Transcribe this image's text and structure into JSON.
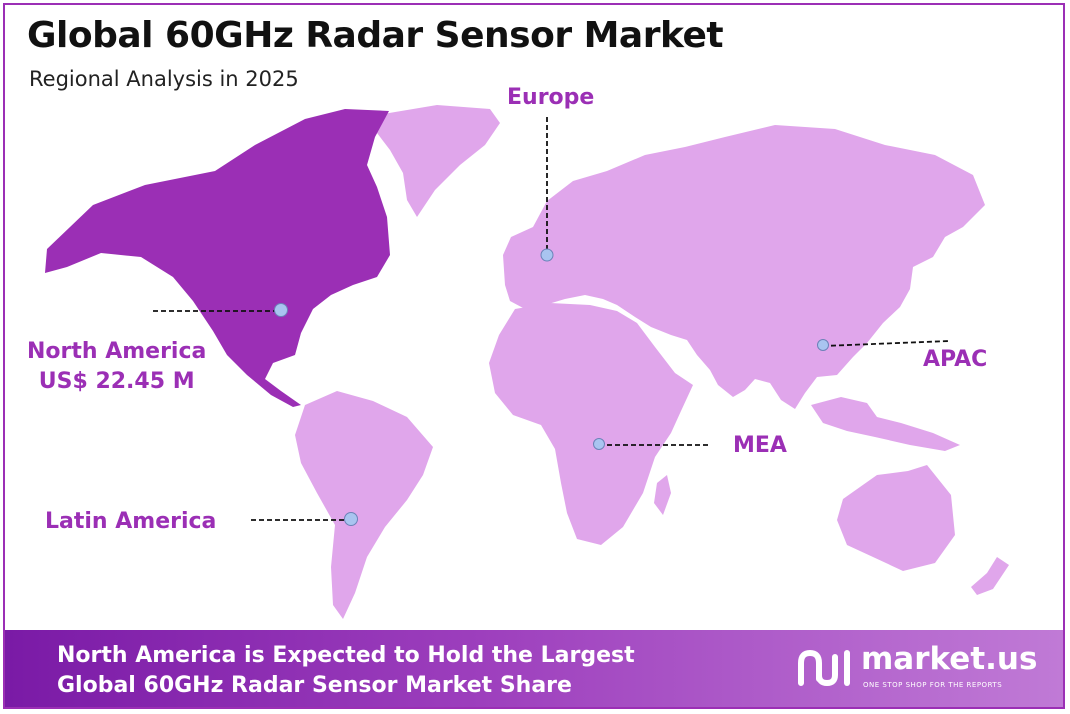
{
  "title": "Global 60GHz Radar Sensor Market",
  "subtitle": "Regional Analysis in 2025",
  "regions": {
    "europe": "Europe",
    "north_america": "North America",
    "north_america_value": "US$ 22.45 M",
    "latin_america": "Latin America",
    "mea": "MEA",
    "apac": "APAC"
  },
  "colors": {
    "highlight": "#9b2fb5",
    "land": "#e0a6eb",
    "marker": "#a9c4f0"
  },
  "footer": {
    "line1": "North America is Expected to Hold the Largest",
    "line2": "Global 60GHz Radar Sensor Market Share"
  },
  "logo": {
    "name": "market.us",
    "tagline": "ONE STOP SHOP FOR THE REPORTS"
  }
}
